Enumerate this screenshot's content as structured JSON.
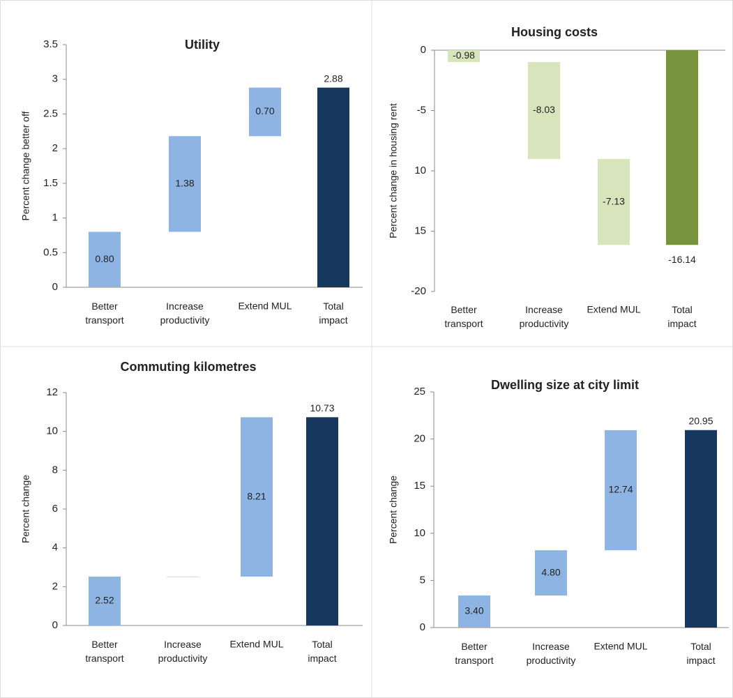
{
  "chart_data": [
    {
      "type": "waterfall",
      "title": "Utility",
      "ylabel": "Percent change  better off",
      "categories": [
        "Better transport",
        "Increase productivity",
        "Extend MUL",
        "Total impact"
      ],
      "values": [
        0.8,
        1.38,
        0.7,
        2.88
      ],
      "value_labels": [
        "0.80",
        "1.38",
        "0.70",
        "2.88"
      ],
      "colors": [
        "#8db4e2",
        "#8db4e2",
        "#8db4e2",
        "#17375e"
      ],
      "ylim": [
        0,
        3.5
      ],
      "yticks": [
        0,
        0.5,
        1,
        1.5,
        2,
        2.5,
        3,
        3.5
      ]
    },
    {
      "type": "waterfall",
      "title": "Housing costs",
      "ylabel": "Percent change in  housing rent",
      "categories": [
        "Better transport",
        "Increase productivity",
        "Extend MUL",
        "Total impact"
      ],
      "values": [
        -0.98,
        -8.03,
        -7.13,
        -16.14
      ],
      "colors": [
        "#d8e4bc",
        "#d8e4bc",
        "#d8e4bc",
        "#77933c"
      ],
      "ylim": [
        -20,
        0
      ],
      "yticks": [
        0,
        -5,
        {
          "value": -10,
          "label": "10"
        },
        {
          "value": -15,
          "label": "15"
        },
        -20
      ]
    },
    {
      "type": "waterfall",
      "title": "Commuting kilometres",
      "ylabel": "Percent change",
      "categories": [
        "Better transport",
        "Increase productivity",
        "Extend MUL",
        "Total impact"
      ],
      "values": [
        2.52,
        0,
        8.21,
        10.73
      ],
      "value_labels": [
        "2.52",
        null,
        "8.21",
        "10.73"
      ],
      "colors": [
        "#8db4e2",
        "#8db4e2",
        "#8db4e2",
        "#17375e"
      ],
      "ylim": [
        0,
        12
      ],
      "yticks": [
        0,
        2,
        4,
        6,
        8,
        10,
        12
      ]
    },
    {
      "type": "waterfall",
      "title": "Dwelling size at city limit",
      "ylabel": "Percent change",
      "categories": [
        "Better transport",
        "Increase productivity",
        "Extend MUL",
        "Total impact"
      ],
      "values": [
        3.4,
        4.8,
        12.74,
        20.95
      ],
      "value_labels": [
        "3.40",
        "4.80",
        "12.74",
        "20.95"
      ],
      "colors": [
        "#8db4e2",
        "#8db4e2",
        "#8db4e2",
        "#17375e"
      ],
      "ylim": [
        0,
        25
      ],
      "yticks": [
        0,
        5,
        10,
        15,
        20,
        25
      ]
    }
  ]
}
